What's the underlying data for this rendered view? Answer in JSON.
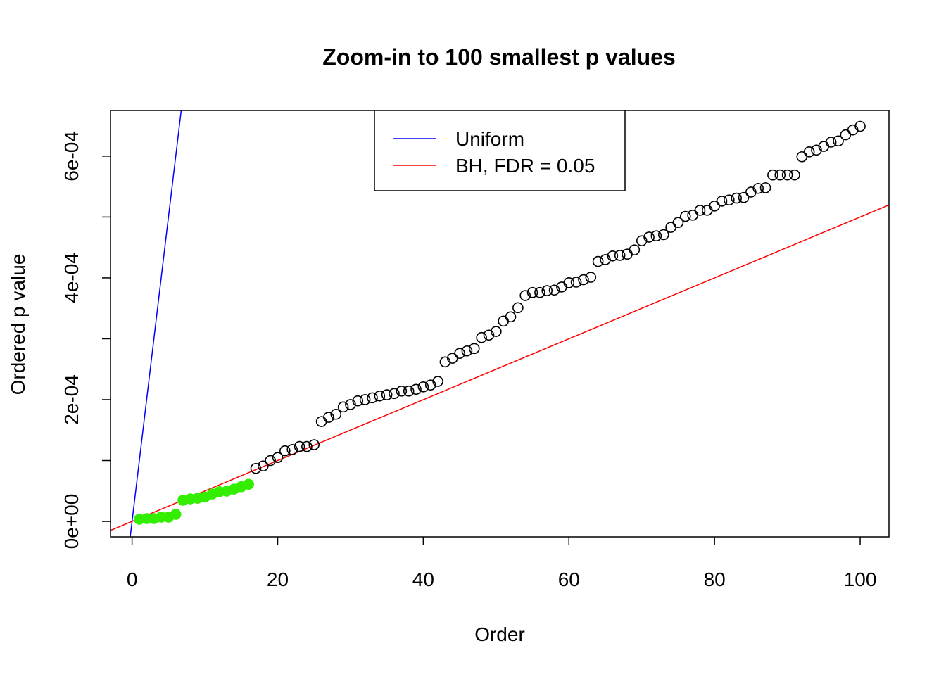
{
  "chart_data": {
    "type": "scatter",
    "title": "Zoom-in to 100 smallest p values",
    "xlabel": "Order",
    "ylabel": "Ordered p value",
    "xlim": [
      -2.96,
      103.96
    ],
    "ylim": [
      -2.54e-05,
      0.000675
    ],
    "xticks": [
      0,
      20,
      40,
      60,
      80,
      100
    ],
    "xtick_labels": [
      "0",
      "20",
      "40",
      "60",
      "80",
      "100"
    ],
    "yticks": [
      0,
      0.0001,
      0.0002,
      0.0003,
      0.0004,
      0.0005,
      0.0006
    ],
    "ytick_labels": [
      "0e+00",
      "",
      "2e-04",
      "",
      "4e-04",
      "",
      "6e-04"
    ],
    "grid": false,
    "legend": {
      "placement": "top",
      "entries": [
        {
          "label": "Uniform",
          "color": "#0000ff"
        },
        {
          "label": "BH, FDR = 0.05",
          "color": "#ff0000"
        }
      ]
    },
    "lines": [
      {
        "name": "Uniform",
        "intercept": 0,
        "slope": 0.0001,
        "color": "#0000ff"
      },
      {
        "name": "BH, FDR = 0.05",
        "intercept": 0,
        "slope": 5e-06,
        "color": "#ff0000"
      }
    ],
    "significant_count": 16,
    "significant_color": "#33ee00",
    "x": [
      1,
      2,
      3,
      4,
      5,
      6,
      7,
      8,
      9,
      10,
      11,
      12,
      13,
      14,
      15,
      16,
      17,
      18,
      19,
      20,
      21,
      22,
      23,
      24,
      25,
      26,
      27,
      28,
      29,
      30,
      31,
      32,
      33,
      34,
      35,
      36,
      37,
      38,
      39,
      40,
      41,
      42,
      43,
      44,
      45,
      46,
      47,
      48,
      49,
      50,
      51,
      52,
      53,
      54,
      55,
      56,
      57,
      58,
      59,
      60,
      61,
      62,
      63,
      64,
      65,
      66,
      67,
      68,
      69,
      70,
      71,
      72,
      73,
      74,
      75,
      76,
      77,
      78,
      79,
      80,
      81,
      82,
      83,
      84,
      85,
      86,
      87,
      88,
      89,
      90,
      91,
      92,
      93,
      94,
      95,
      96,
      97,
      98,
      99,
      100
    ],
    "y": [
      3.5e-06,
      4.6e-06,
      4.6e-06,
      7e-06,
      7e-06,
      1.16e-05,
      3.47e-05,
      3.7e-05,
      3.8e-05,
      4e-05,
      4.5e-05,
      4.86e-05,
      4.97e-05,
      5.3e-05,
      5.7e-05,
      6.1e-05,
      8.7e-05,
      9.1e-05,
      0.0001,
      0.000105,
      0.000116,
      0.000118,
      0.000123,
      0.000123,
      0.000126,
      0.000164,
      0.000171,
      0.000176,
      0.000188,
      0.000192,
      0.000198,
      0.0002,
      0.000203,
      0.000206,
      0.000208,
      0.00021,
      0.000214,
      0.000214,
      0.000217,
      0.000221,
      0.000224,
      0.00023,
      0.000262,
      0.000268,
      0.000276,
      0.00028,
      0.000284,
      0.000302,
      0.000306,
      0.000312,
      0.000329,
      0.000336,
      0.000351,
      0.000371,
      0.000376,
      0.000376,
      0.000379,
      0.00038,
      0.000385,
      0.000392,
      0.000393,
      0.000397,
      0.000401,
      0.000427,
      0.00043,
      0.000436,
      0.000437,
      0.000439,
      0.000446,
      0.000461,
      0.000467,
      0.000469,
      0.000471,
      0.000483,
      0.000491,
      0.000501,
      0.000503,
      0.000511,
      0.000511,
      0.000518,
      0.000526,
      0.000528,
      0.000531,
      0.000532,
      0.000541,
      0.000547,
      0.000548,
      0.000569,
      0.000569,
      0.000569,
      0.000569,
      0.000599,
      0.000607,
      0.00061,
      0.000616,
      0.000623,
      0.000625,
      0.000635,
      0.000643,
      0.000649
    ]
  }
}
